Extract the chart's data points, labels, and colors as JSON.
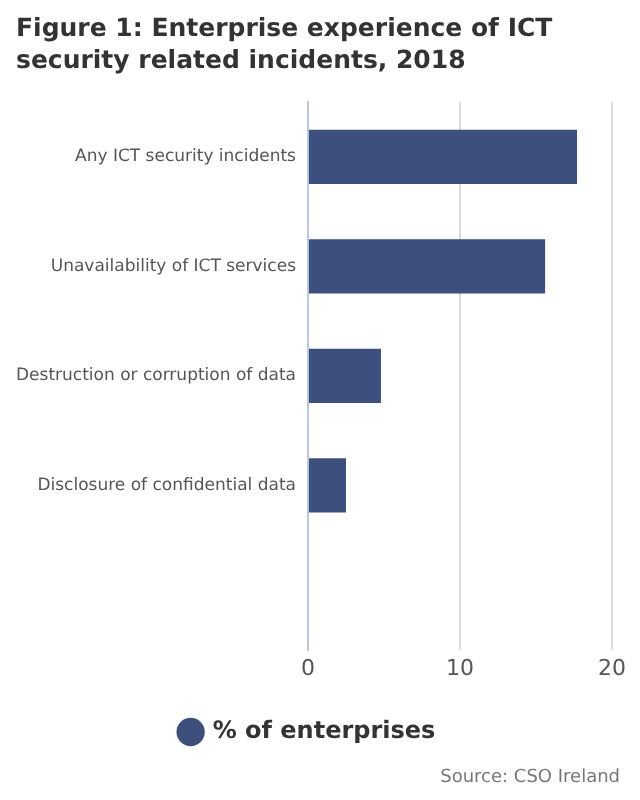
{
  "chart_data": {
    "type": "bar",
    "orientation": "horizontal",
    "title": "Figure 1: Enterprise experience of ICT security related incidents, 2018",
    "categories": [
      "Any ICT security incidents",
      "Unavailability of ICT services",
      "Destruction or corruption of data",
      "Disclosure of confidential data",
      null
    ],
    "series": [
      {
        "name": "% of enterprises",
        "color": "#3d4f7c",
        "values": [
          17.7,
          15.6,
          4.8,
          2.5,
          null
        ]
      }
    ],
    "xlim": [
      0,
      20
    ],
    "xticks": [
      0,
      10,
      20
    ],
    "grid": "x",
    "legend": "bottom",
    "annotations": [
      "Source: CSO Ireland"
    ]
  }
}
